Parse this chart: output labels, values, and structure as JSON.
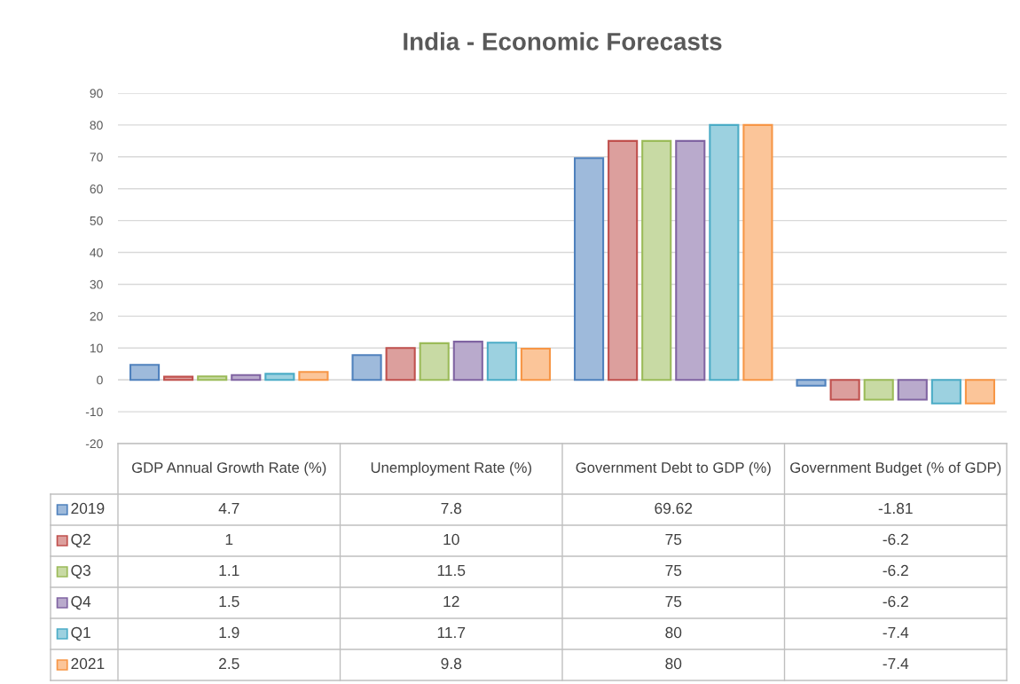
{
  "chart_data": {
    "type": "bar",
    "title": "India - Economic Forecasts",
    "categories": [
      "GDP Annual Growth Rate (%)",
      "Unemployment Rate (%)",
      "Government Debt to GDP (%)",
      "Government Budget (% of GDP)"
    ],
    "series": [
      {
        "name": "2019",
        "color": "#4f81bd",
        "values": [
          4.7,
          7.8,
          69.62,
          -1.81
        ]
      },
      {
        "name": "Q2",
        "color": "#c0504d",
        "values": [
          1,
          10,
          75,
          -6.2
        ]
      },
      {
        "name": "Q3",
        "color": "#9bbb59",
        "values": [
          1.1,
          11.5,
          75,
          -6.2
        ]
      },
      {
        "name": "Q4",
        "color": "#8064a2",
        "values": [
          1.5,
          12,
          75,
          -6.2
        ]
      },
      {
        "name": "Q1",
        "color": "#4bacc6",
        "values": [
          1.9,
          11.7,
          80,
          -7.4
        ]
      },
      {
        "name": "2021",
        "color": "#f79646",
        "values": [
          2.5,
          9.8,
          80,
          -7.4
        ]
      }
    ],
    "ylim": [
      -20,
      90
    ],
    "yticks": [
      -20,
      -10,
      0,
      10,
      20,
      30,
      40,
      50,
      60,
      70,
      80,
      90
    ],
    "grid": "y",
    "legend": "bottom",
    "data_labels": true
  }
}
